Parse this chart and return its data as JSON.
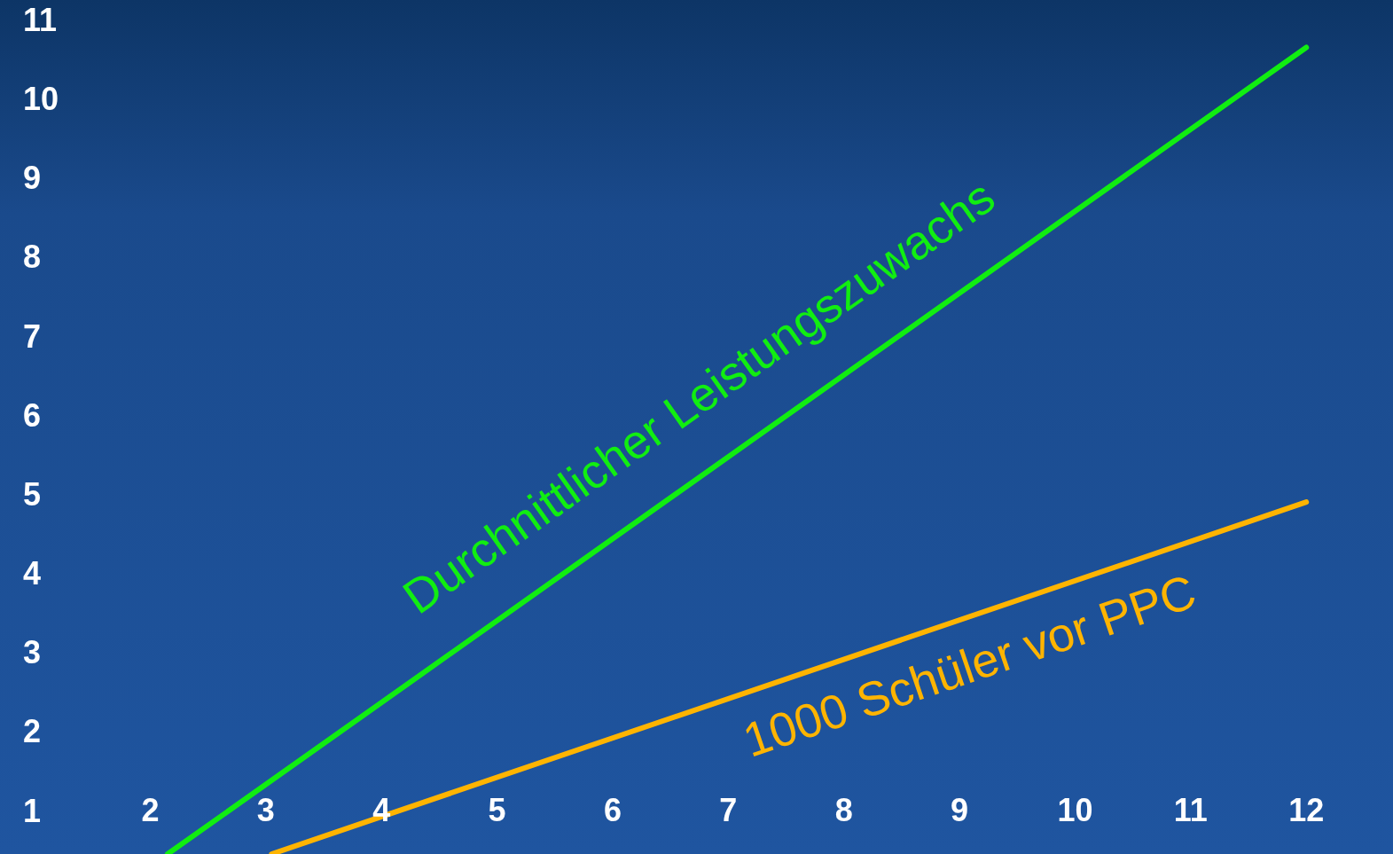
{
  "chart_data": {
    "type": "line",
    "xlim": [
      0.7,
      12.75
    ],
    "ylim": [
      0.45,
      11.25
    ],
    "xticks": [
      2,
      3,
      4,
      5,
      6,
      7,
      8,
      9,
      10,
      11,
      12
    ],
    "yticks": [
      1,
      2,
      3,
      4,
      5,
      6,
      7,
      8,
      9,
      10,
      11
    ],
    "grid": false,
    "marker": "none",
    "line_style": "solid",
    "series": [
      {
        "name": "Durchnittlicher Leistungszuwachs",
        "color": "#11ee11",
        "x": [
          2.15,
          12
        ],
        "values": [
          0.45,
          10.65
        ]
      },
      {
        "name": "1000 Schüler vor PPC",
        "color": "#ffb400",
        "x": [
          3.05,
          12
        ],
        "values": [
          0.45,
          4.9
        ]
      }
    ]
  }
}
